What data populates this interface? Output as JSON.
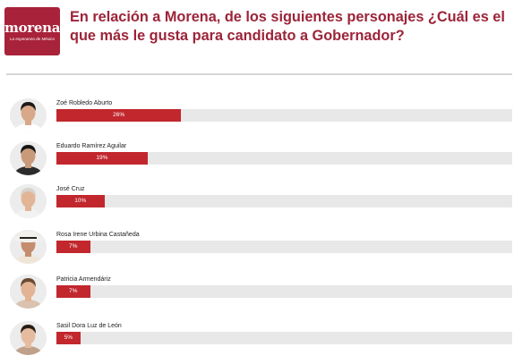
{
  "logo": {
    "word": "morena",
    "tagline": "La esperanza de México"
  },
  "title": "En relación a Morena, de los siguientes personajes ¿Cuál es el que más le gusta para candidato a Gobernador?",
  "colors": {
    "bar": "#c1272d",
    "track": "#e8e8e8",
    "title": "#9c2439",
    "logo_bg": "#a8223a"
  },
  "chart_data": {
    "type": "bar",
    "orientation": "horizontal",
    "title": "En relación a Morena, de los siguientes personajes ¿Cuál es el que más le gusta para candidato a Gobernador?",
    "categories": [
      "Zoé Robledo Aburto",
      "Eduardo Ramírez Aguilar",
      "José Cruz",
      "Rosa Irene Urbina Castañeda",
      "Patricia Armendáriz",
      "Sasil Dora Luz de León"
    ],
    "values": [
      26,
      19,
      10,
      7,
      7,
      5
    ],
    "labels": [
      "26%",
      "19%",
      "10%",
      "7%",
      "7%",
      "5%"
    ],
    "xlim": [
      0,
      95
    ],
    "unit": "%"
  }
}
